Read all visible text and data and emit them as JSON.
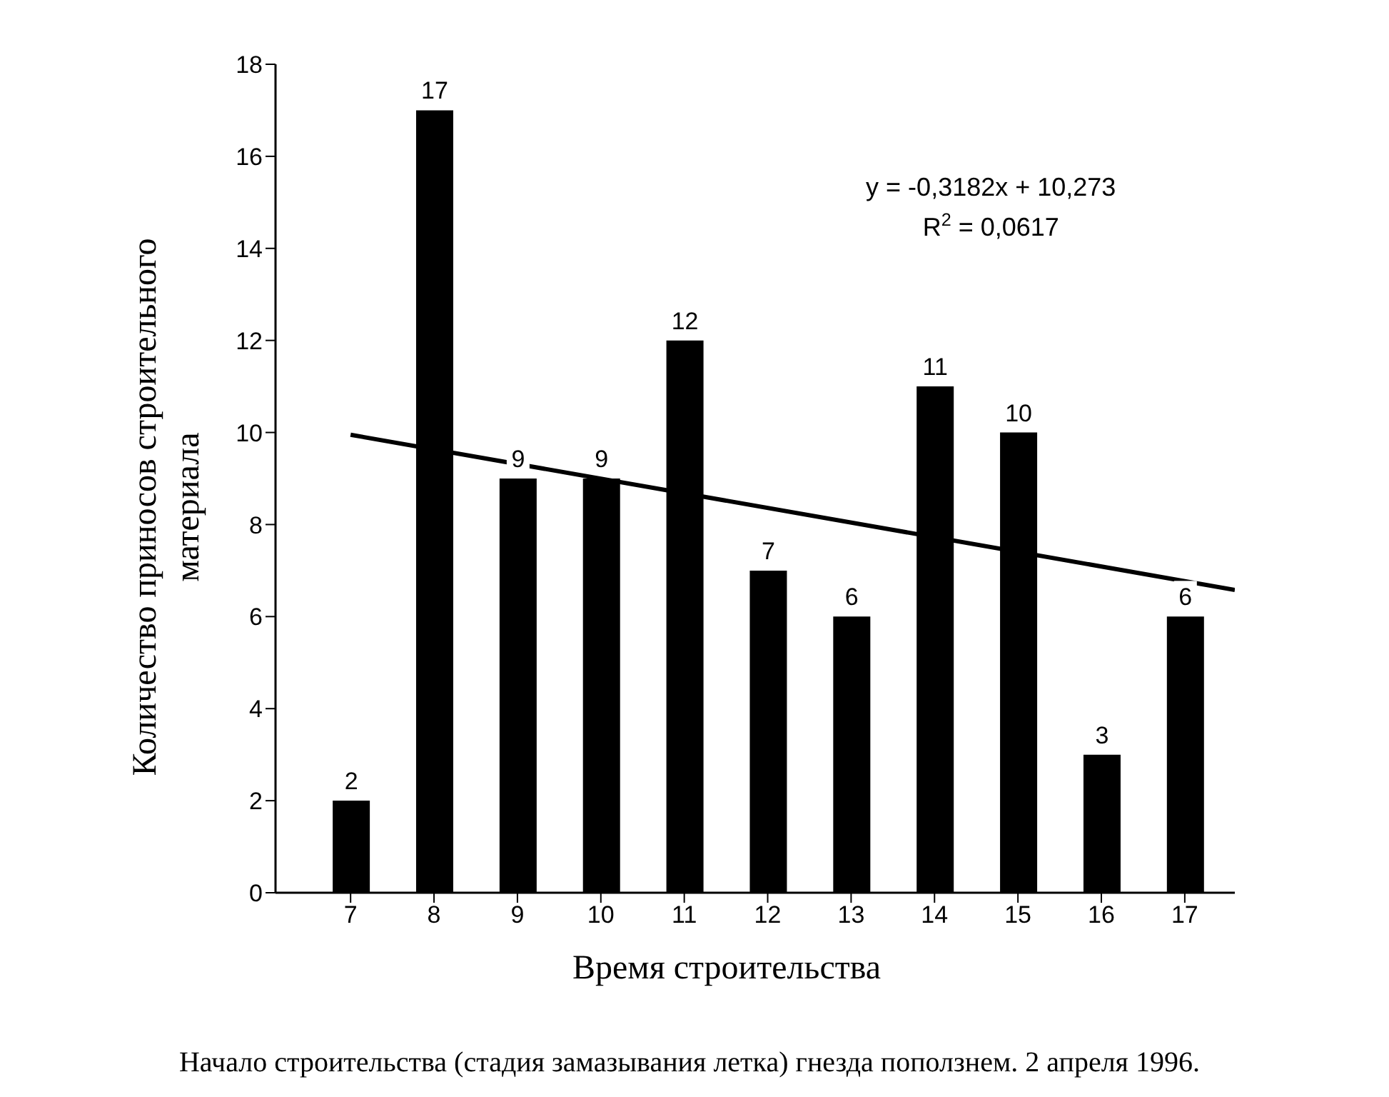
{
  "chart_data": {
    "type": "bar",
    "xlabel": "Время строительства",
    "ylabel": "Количество приносов строительного материала",
    "x": [
      7,
      8,
      9,
      10,
      11,
      12,
      13,
      14,
      15,
      16,
      17
    ],
    "xlim": [
      6.1,
      17.6
    ],
    "xticks": [
      7,
      8,
      9,
      10,
      11,
      12,
      13,
      14,
      15,
      16,
      17
    ],
    "ylim": [
      0,
      18
    ],
    "yticks": [
      0,
      2,
      4,
      6,
      8,
      10,
      12,
      14,
      16,
      18
    ],
    "series": [
      {
        "color": "#000000",
        "values": [
          2,
          17,
          9,
          9,
          12,
          7,
          6,
          11,
          10,
          3,
          6
        ],
        "value_labels": [
          "2",
          "17",
          "9",
          "9",
          "12",
          "7",
          "6",
          "11",
          "10",
          "3",
          "6"
        ]
      },
      {
        "type": "line",
        "color": "#000000",
        "x": [
          7,
          17.6
        ],
        "values": [
          9.95,
          6.58
        ]
      }
    ],
    "grid": false,
    "legend": false,
    "marker": "none",
    "line_style": "solid",
    "annotations": [
      "y = -0,3182x + 10,273",
      "R$^{2}$ = 0,0617",
      "Начало строительства (стадия замазывания летка) гнезда поползнем. 2 апреля 1996."
    ]
  }
}
